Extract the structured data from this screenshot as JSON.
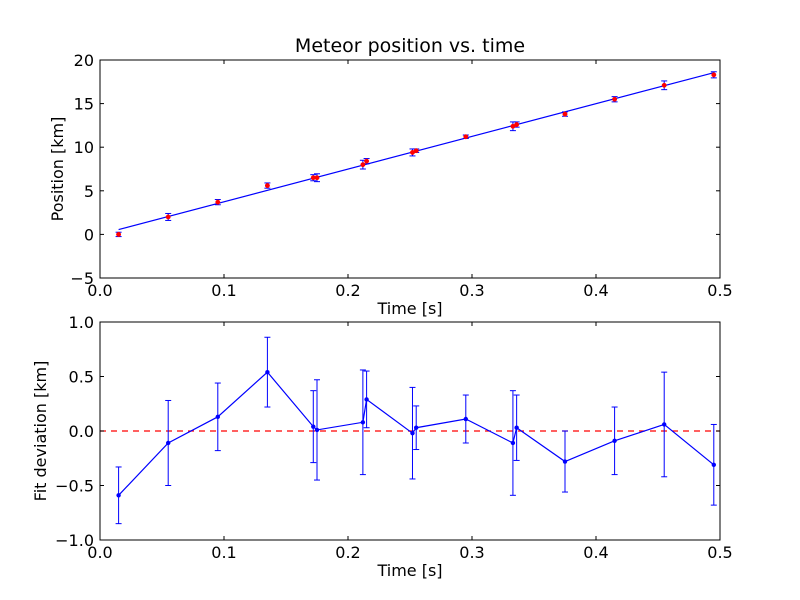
{
  "chart_data": [
    {
      "type": "scatter",
      "title": "Meteor position vs. time",
      "xlabel": "Time [s]",
      "ylabel": "Position [km]",
      "xlim": [
        0.0,
        0.5
      ],
      "ylim": [
        -5,
        20
      ],
      "xticks": [
        "0.0",
        "0.1",
        "0.2",
        "0.3",
        "0.4",
        "0.5"
      ],
      "yticks": [
        "−5",
        "0",
        "5",
        "10",
        "15",
        "20"
      ],
      "grid": false,
      "colors": {
        "points": "#ff0000",
        "errorbars": "#0000ff",
        "fit": "#0000ff"
      },
      "series": [
        {
          "kind": "points_with_errorbars",
          "x": [
            0.015,
            0.055,
            0.095,
            0.135,
            0.172,
            0.175,
            0.212,
            0.215,
            0.252,
            0.255,
            0.295,
            0.333,
            0.336,
            0.375,
            0.415,
            0.455,
            0.495
          ],
          "y": [
            0.0,
            2.0,
            3.7,
            5.6,
            6.5,
            6.5,
            8.0,
            8.4,
            9.4,
            9.6,
            11.2,
            12.4,
            12.6,
            13.8,
            15.5,
            17.1,
            18.3
          ],
          "yerr": [
            0.25,
            0.4,
            0.3,
            0.3,
            0.35,
            0.45,
            0.5,
            0.3,
            0.4,
            0.2,
            0.2,
            0.5,
            0.3,
            0.25,
            0.3,
            0.5,
            0.35
          ]
        },
        {
          "kind": "fit_line",
          "x": [
            0.015,
            0.495
          ],
          "y": [
            0.55,
            18.55
          ]
        }
      ]
    },
    {
      "type": "line",
      "xlabel": "Time [s]",
      "ylabel": "Fit deviation [km]",
      "xlim": [
        0.0,
        0.5
      ],
      "ylim": [
        -1.0,
        1.0
      ],
      "xticks": [
        "0.0",
        "0.1",
        "0.2",
        "0.3",
        "0.4",
        "0.5"
      ],
      "yticks": [
        "−1.0",
        "−0.5",
        "0.0",
        "0.5",
        "1.0"
      ],
      "grid": false,
      "colors": {
        "line": "#0000ff",
        "zero_line": "#ff0000"
      },
      "series": [
        {
          "kind": "line_with_errorbars",
          "x": [
            0.015,
            0.055,
            0.095,
            0.135,
            0.172,
            0.175,
            0.212,
            0.215,
            0.252,
            0.255,
            0.295,
            0.333,
            0.336,
            0.375,
            0.415,
            0.455,
            0.495
          ],
          "y": [
            -0.59,
            -0.11,
            0.13,
            0.54,
            0.04,
            0.01,
            0.08,
            0.29,
            -0.02,
            0.03,
            0.11,
            -0.11,
            0.03,
            -0.28,
            -0.09,
            0.06,
            -0.31
          ],
          "yerr": [
            0.26,
            0.39,
            0.31,
            0.32,
            0.33,
            0.46,
            0.48,
            0.26,
            0.42,
            0.2,
            0.22,
            0.48,
            0.3,
            0.28,
            0.31,
            0.48,
            0.37
          ]
        },
        {
          "kind": "reference_line",
          "y": 0.0,
          "style": "dashed"
        }
      ]
    }
  ]
}
